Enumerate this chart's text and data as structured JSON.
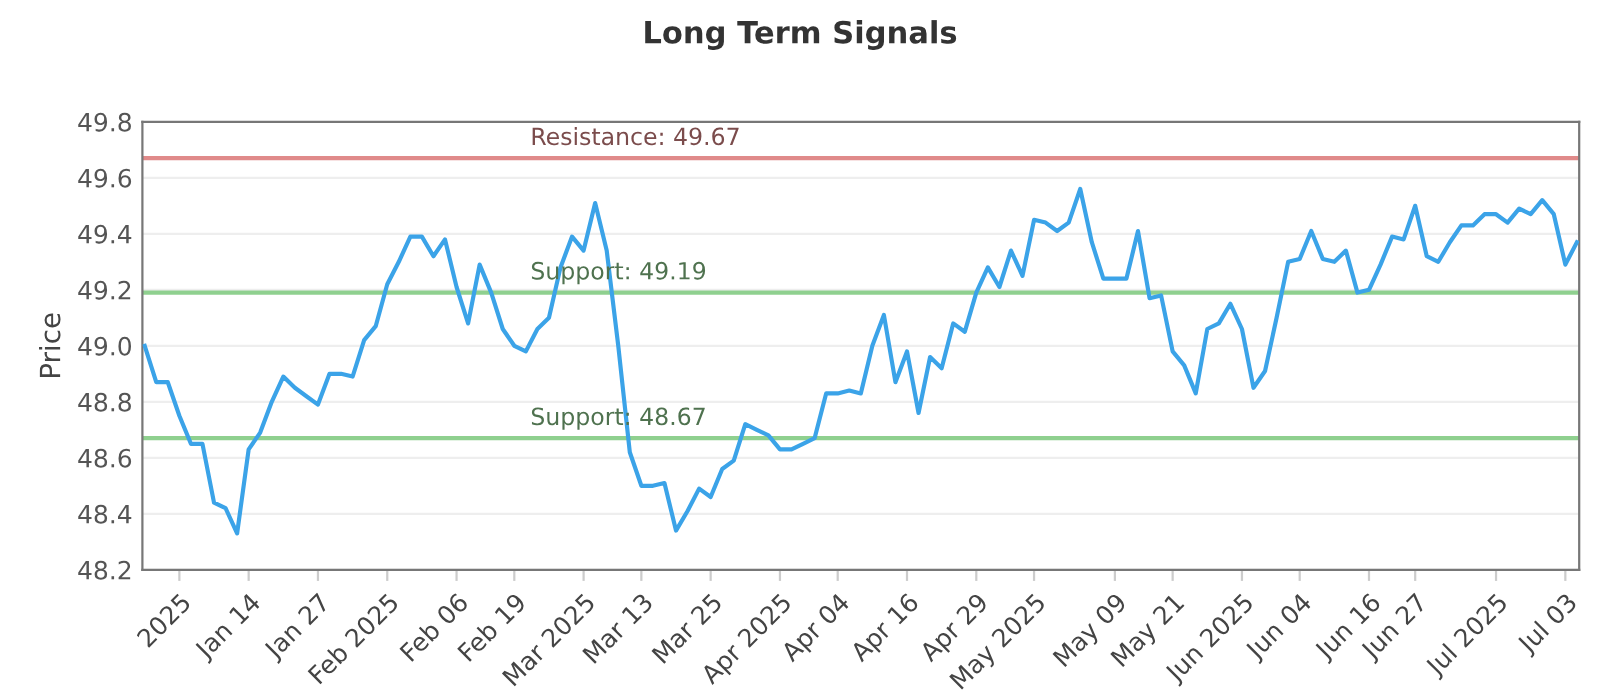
{
  "chart_data": {
    "type": "line",
    "title": "Long Term Signals",
    "ylabel": "Price",
    "categories": [
      null,
      null,
      null,
      "2025",
      null,
      null,
      null,
      null,
      null,
      "Jan 14",
      null,
      null,
      null,
      null,
      null,
      "Jan 27",
      null,
      null,
      null,
      null,
      null,
      "Feb 2025",
      null,
      null,
      null,
      null,
      null,
      "Feb 06",
      null,
      null,
      null,
      null,
      "Feb 19",
      null,
      null,
      null,
      null,
      null,
      "Mar 2025",
      null,
      null,
      null,
      null,
      "Mar 13",
      null,
      null,
      null,
      null,
      null,
      "Mar 25",
      null,
      null,
      null,
      null,
      null,
      "Apr 2025",
      null,
      null,
      null,
      null,
      "Apr 04",
      null,
      null,
      null,
      null,
      null,
      "Apr 16",
      null,
      null,
      null,
      null,
      null,
      "Apr 29",
      null,
      null,
      null,
      null,
      "May 2025",
      null,
      null,
      null,
      null,
      null,
      null,
      "May 09",
      null,
      null,
      null,
      null,
      "May 21",
      null,
      null,
      null,
      null,
      null,
      "Jun 2025",
      null,
      null,
      null,
      null,
      "Jun 04",
      null,
      null,
      null,
      null,
      null,
      "Jun 16",
      null,
      null,
      null,
      "Jun 27",
      null,
      null,
      null,
      null,
      null,
      null,
      "Jul 2025",
      null,
      null,
      null,
      null,
      null,
      "Jul 03",
      null
    ],
    "series": [
      {
        "color": "#3ba3e8",
        "values": [
          49.0,
          48.87,
          48.87,
          48.75,
          48.65,
          48.65,
          48.44,
          48.42,
          48.33,
          48.63,
          48.69,
          48.8,
          48.89,
          48.85,
          48.82,
          48.79,
          48.9,
          48.9,
          48.89,
          49.02,
          49.07,
          49.22,
          49.3,
          49.39,
          49.39,
          49.32,
          49.38,
          49.21,
          49.08,
          49.29,
          49.19,
          49.06,
          49.0,
          48.98,
          49.06,
          49.1,
          49.28,
          49.39,
          49.34,
          49.51,
          49.34,
          49.0,
          48.62,
          48.5,
          48.5,
          48.51,
          48.34,
          48.41,
          48.49,
          48.46,
          48.56,
          48.59,
          48.72,
          48.7,
          48.68,
          48.63,
          48.63,
          48.65,
          48.67,
          48.83,
          48.83,
          48.84,
          48.83,
          49.0,
          49.11,
          48.87,
          48.98,
          48.76,
          48.96,
          48.92,
          49.08,
          49.05,
          49.19,
          49.28,
          49.21,
          49.34,
          49.25,
          49.45,
          49.44,
          49.41,
          49.44,
          49.56,
          49.37,
          49.24,
          49.24,
          49.24,
          49.41,
          49.17,
          49.18,
          48.98,
          48.93,
          48.83,
          49.06,
          49.08,
          49.15,
          49.06,
          48.85,
          48.91,
          49.1,
          49.3,
          49.31,
          49.41,
          49.31,
          49.3,
          49.34,
          49.19,
          49.2,
          49.29,
          49.39,
          49.38,
          49.5,
          49.32,
          49.3,
          49.37,
          49.43,
          49.43,
          49.47,
          49.47,
          49.44,
          49.49,
          49.47,
          49.52,
          49.47,
          49.29,
          49.37
        ]
      }
    ],
    "ylim": [
      48.2,
      49.8
    ],
    "yticks": [
      48.2,
      48.4,
      48.6,
      48.8,
      {
        "value": 49,
        "label": "49.0"
      },
      49.2,
      49.4,
      49.6,
      49.8
    ],
    "grid": "y",
    "ref_lines": [
      {
        "axis": "y",
        "value": 49.67,
        "label": "Resistance: 49.67",
        "color": "#e08a8a"
      },
      {
        "axis": "y",
        "value": 49.19,
        "label": "Support: 49.19",
        "color": "#8fd08f"
      },
      {
        "axis": "y",
        "value": 48.67,
        "label": "Support: 48.67",
        "color": "#8fd08f"
      }
    ]
  }
}
